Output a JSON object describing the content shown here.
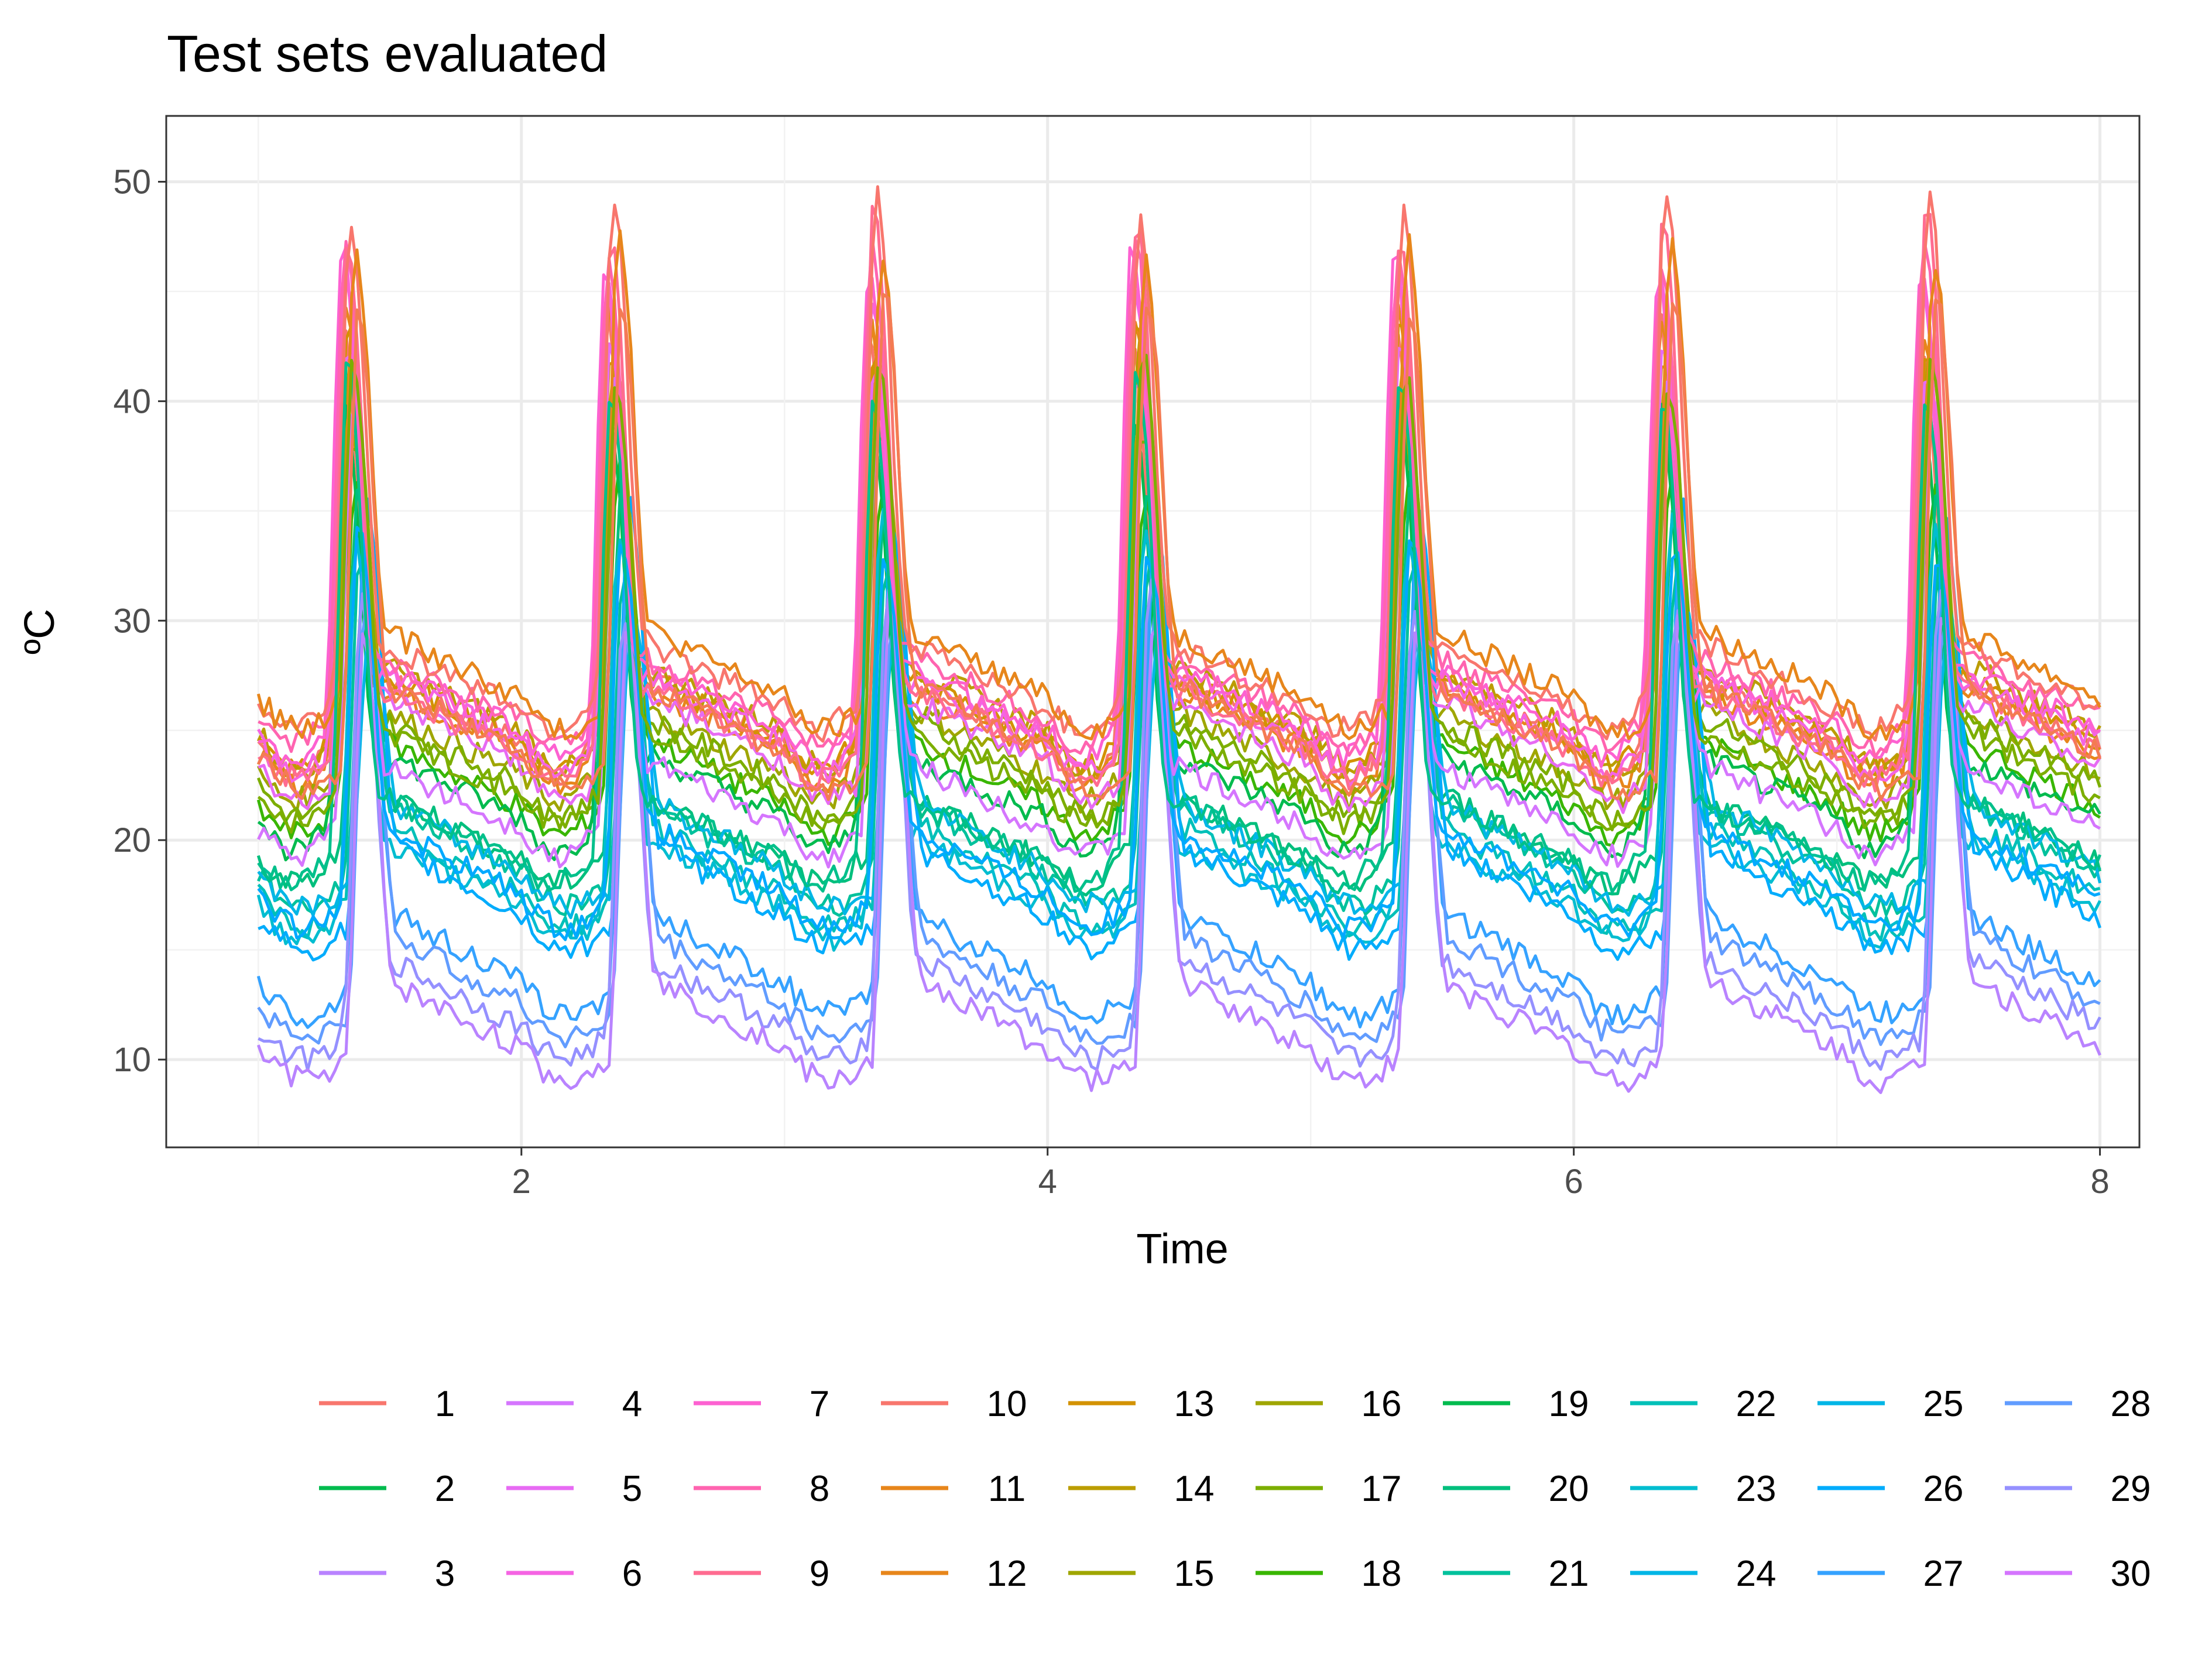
{
  "chart_data": {
    "type": "line",
    "title": "Test sets evaluated",
    "xlabel": "Time",
    "ylabel": "ºC",
    "xlim": [
      0.65,
      8.15
    ],
    "ylim": [
      6.0,
      53.0
    ],
    "x_ticks": [
      2,
      4,
      6,
      8
    ],
    "y_ticks": [
      10,
      20,
      30,
      40,
      50
    ],
    "grid": true,
    "legend_position": "bottom",
    "x_range": [
      1,
      8
    ],
    "samples_per_day": 48,
    "series": [
      {
        "name": "1",
        "color": "#F8766D",
        "base": 24.5,
        "peak": 43.5,
        "night": 24.0,
        "rise_at": 0.25
      },
      {
        "name": "2",
        "color": "#E7861B",
        "base": 24.0,
        "peak": 44.0,
        "night": 23.5,
        "rise_at": 0.26
      },
      {
        "name": "3",
        "color": "#D39200",
        "base": 24.5,
        "peak": 43.0,
        "night": 24.5,
        "rise_at": 0.27
      },
      {
        "name": "4",
        "color": "#BB9D00",
        "base": 25.0,
        "peak": 42.5,
        "night": 24.0,
        "rise_at": 0.28
      },
      {
        "name": "5",
        "color": "#9FA600",
        "base": 23.0,
        "peak": 39.5,
        "night": 23.0,
        "rise_at": 0.28
      },
      {
        "name": "6",
        "color": "#7CAE00",
        "base": 22.5,
        "peak": 38.5,
        "night": 22.0,
        "rise_at": 0.29
      },
      {
        "name": "7",
        "color": "#39B600",
        "base": 21.5,
        "peak": 36.5,
        "night": 21.5,
        "rise_at": 0.3
      },
      {
        "name": "8",
        "color": "#00BB4E",
        "base": 21.0,
        "peak": 39.5,
        "night": 20.5,
        "rise_at": 0.26
      },
      {
        "name": "9",
        "color": "#00BF7D",
        "base": 19.0,
        "peak": 36.0,
        "night": 19.5,
        "rise_at": 0.31
      },
      {
        "name": "10",
        "color": "#00C19C",
        "base": 18.5,
        "peak": 33.0,
        "night": 18.0,
        "rise_at": 0.32
      },
      {
        "name": "11",
        "color": "#00C0B8",
        "base": 17.5,
        "peak": 32.0,
        "night": 17.0,
        "rise_at": 0.33
      },
      {
        "name": "12",
        "color": "#00BDD0",
        "base": 17.0,
        "peak": 34.0,
        "night": 16.5,
        "rise_at": 0.3
      },
      {
        "name": "13",
        "color": "#00B6E6",
        "base": 18.5,
        "peak": 30.0,
        "night": 18.0,
        "rise_at": 0.35
      },
      {
        "name": "14",
        "color": "#00ACFC",
        "base": 16.5,
        "peak": 35.0,
        "night": 16.0,
        "rise_at": 0.34
      },
      {
        "name": "15",
        "color": "#35A2FF",
        "base": 13.5,
        "peak": 32.0,
        "night": 13.0,
        "rise_at": 0.33
      },
      {
        "name": "16",
        "color": "#619CFF",
        "base": 12.5,
        "peak": 30.5,
        "night": 12.0,
        "rise_at": 0.34
      },
      {
        "name": "17",
        "color": "#9590FF",
        "base": 11.5,
        "peak": 31.0,
        "night": 11.0,
        "rise_at": 0.32
      },
      {
        "name": "18",
        "color": "#B983FF",
        "base": 10.5,
        "peak": 30.0,
        "night": 10.0,
        "rise_at": 0.33
      },
      {
        "name": "19",
        "color": "#D575FE",
        "base": 20.5,
        "peak": 40.5,
        "night": 20.5,
        "rise_at": 0.29
      },
      {
        "name": "20",
        "color": "#E76BF3",
        "base": 23.5,
        "peak": 42.0,
        "night": 22.5,
        "rise_at": 0.27
      },
      {
        "name": "21",
        "color": "#F564E3",
        "base": 24.5,
        "peak": 45.5,
        "night": 24.0,
        "rise_at": 0.26
      },
      {
        "name": "22",
        "color": "#FD61D1",
        "base": 25.0,
        "peak": 46.5,
        "night": 25.0,
        "rise_at": 0.25
      },
      {
        "name": "23",
        "color": "#FF64B0",
        "base": 25.5,
        "peak": 47.0,
        "night": 25.5,
        "rise_at": 0.26
      },
      {
        "name": "24",
        "color": "#FF6C91",
        "base": 24.0,
        "peak": 48.0,
        "night": 24.0,
        "rise_at": 0.27
      },
      {
        "name": "25",
        "color": "#F8766D",
        "base": 26.0,
        "peak": 49.0,
        "night": 26.5,
        "rise_at": 0.28
      },
      {
        "name": "26",
        "color": "#E7861B",
        "base": 26.5,
        "peak": 47.0,
        "night": 26.0,
        "rise_at": 0.3
      },
      {
        "name": "27",
        "color": "#00A9FF",
        "base": 17.5,
        "peak": 33.5,
        "night": 17.0,
        "rise_at": 0.31
      },
      {
        "name": "28",
        "color": "#00C08B",
        "base": 19.0,
        "peak": 41.0,
        "night": 19.5,
        "rise_at": 0.27
      },
      {
        "name": "29",
        "color": "#7CAE00",
        "base": 22.0,
        "peak": 41.5,
        "night": 22.0,
        "rise_at": 0.29
      },
      {
        "name": "30",
        "color": "#F47B53",
        "base": 24.0,
        "peak": 44.5,
        "night": 23.0,
        "rise_at": 0.31
      }
    ],
    "legend": [
      {
        "label": "1",
        "color": "#F8766D"
      },
      {
        "label": "2",
        "color": "#00BB4E"
      },
      {
        "label": "3",
        "color": "#B983FF"
      },
      {
        "label": "4",
        "color": "#D575FE"
      },
      {
        "label": "5",
        "color": "#E76BF3"
      },
      {
        "label": "6",
        "color": "#F564E3"
      },
      {
        "label": "7",
        "color": "#FD61D1"
      },
      {
        "label": "8",
        "color": "#FF64B0"
      },
      {
        "label": "9",
        "color": "#FF6C91"
      },
      {
        "label": "10",
        "color": "#F8766D"
      },
      {
        "label": "11",
        "color": "#E7861B"
      },
      {
        "label": "12",
        "color": "#E7861B"
      },
      {
        "label": "13",
        "color": "#D39200"
      },
      {
        "label": "14",
        "color": "#BB9D00"
      },
      {
        "label": "15",
        "color": "#9FA600"
      },
      {
        "label": "16",
        "color": "#9FA600"
      },
      {
        "label": "17",
        "color": "#7CAE00"
      },
      {
        "label": "18",
        "color": "#39B600"
      },
      {
        "label": "19",
        "color": "#00BB4E"
      },
      {
        "label": "20",
        "color": "#00BF7D"
      },
      {
        "label": "21",
        "color": "#00C19C"
      },
      {
        "label": "22",
        "color": "#00C0B8"
      },
      {
        "label": "23",
        "color": "#00BDD0"
      },
      {
        "label": "24",
        "color": "#00B6E6"
      },
      {
        "label": "25",
        "color": "#00B6E6"
      },
      {
        "label": "26",
        "color": "#00ACFC"
      },
      {
        "label": "27",
        "color": "#35A2FF"
      },
      {
        "label": "28",
        "color": "#619CFF"
      },
      {
        "label": "29",
        "color": "#9590FF"
      },
      {
        "label": "30",
        "color": "#D575FE"
      }
    ]
  }
}
